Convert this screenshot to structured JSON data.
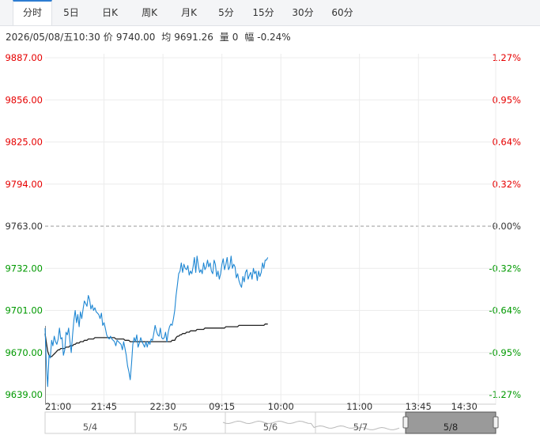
{
  "tabs": [
    "分时",
    "5日",
    "日K",
    "周K",
    "月K",
    "5分",
    "15分",
    "30分",
    "60分"
  ],
  "active_tab": 0,
  "info": {
    "datetime": "2026/05/08/五10:30",
    "price_label": "价",
    "price": "9740.00",
    "avg_label": "均",
    "avg": "9691.26",
    "vol_label": "量",
    "vol": "0",
    "chg_label": "幅",
    "chg": "-0.24%"
  },
  "colors": {
    "up": "#e60000",
    "down": "#009900",
    "flat": "#333333",
    "price_line": "#1f87d3",
    "avg_line": "#222222",
    "tab_accent": "#2d7dd2"
  },
  "chart_data": {
    "type": "line",
    "prev_close": 9763.0,
    "ylim": [
      9639.0,
      9887.0
    ],
    "y_ticks": [
      "9887.00",
      "9856.00",
      "9825.00",
      "9794.00",
      "9763.00",
      "9732.00",
      "9701.00",
      "9670.00",
      "9639.00"
    ],
    "pct_ticks": [
      "1.27%",
      "0.95%",
      "0.64%",
      "0.32%",
      "0.00%",
      "-0.32%",
      "-0.64%",
      "-0.95%",
      "-1.27%"
    ],
    "x_ticks": [
      "21:00",
      "21:45",
      "22:30",
      "09:15",
      "10:00",
      "11:00",
      "13:45",
      "14:30"
    ],
    "x_tick_index": [
      0,
      45,
      90,
      135,
      180,
      240,
      285,
      330
    ],
    "total_points": 345,
    "series": [
      {
        "values": [
          9688,
          9660,
          9645,
          9668,
          9666,
          9679,
          9675,
          9682,
          9678,
          9676,
          9680,
          9688,
          9680,
          9681,
          9668,
          9672,
          9685,
          9683,
          9688,
          9678,
          9670,
          9683,
          9694,
          9701,
          9692,
          9698,
          9689,
          9700,
          9695,
          9702,
          9708,
          9706,
          9704,
          9712,
          9709,
          9702,
          9705,
          9701,
          9703,
          9700,
          9699,
          9698,
          9695,
          9699,
          9690,
          9692,
          9688,
          9683,
          9681,
          9680,
          9682,
          9680,
          9679,
          9678,
          9675,
          9679,
          9678,
          9677,
          9676,
          9672,
          9678,
          9673,
          9668,
          9660,
          9656,
          9650,
          9662,
          9676,
          9681,
          9678,
          9683,
          9674,
          9677,
          9681,
          9678,
          9676,
          9674,
          9678,
          9674,
          9678,
          9676,
          9680,
          9679,
          9684,
          9690,
          9686,
          9683,
          9682,
          9688,
          9681,
          9680,
          9681,
          9685,
          9678,
          9685,
          9689,
          9691,
          9690,
          9695,
          9701,
          9712,
          9720,
          9728,
          9730,
          9736,
          9729,
          9735,
          9732,
          9731,
          9734,
          9727,
          9730,
          9728,
          9733,
          9740,
          9729,
          9741,
          9734,
          9729,
          9731,
          9728,
          9736,
          9731,
          9733,
          9738,
          9733,
          9736,
          9730,
          9728,
          9738,
          9735,
          9726,
          9730,
          9724,
          9728,
          9735,
          9739,
          9731,
          9735,
          9740,
          9731,
          9733,
          9741,
          9732,
          9735,
          9733,
          9725,
          9728,
          9723,
          9720,
          9718,
          9726,
          9722,
          9729,
          9731,
          9724,
          9727,
          9729,
          9724,
          9732,
          9728,
          9730,
          9723,
          9730,
          9726,
          9729,
          9736,
          9732,
          9738,
          9738,
          9740
        ],
        "color": "#1f87d3"
      },
      {
        "values": [
          9684,
          9677,
          9671,
          9668,
          9667,
          9667,
          9668,
          9669,
          9670,
          9671,
          9672,
          9672,
          9673,
          9673,
          9673,
          9673,
          9674,
          9674,
          9674,
          9675,
          9675,
          9675,
          9676,
          9676,
          9677,
          9677,
          9677,
          9678,
          9678,
          9678,
          9679,
          9679,
          9679,
          9680,
          9680,
          9680,
          9680,
          9680,
          9681,
          9681,
          9681,
          9681,
          9681,
          9681,
          9681,
          9681,
          9681,
          9681,
          9681,
          9681,
          9681,
          9681,
          9681,
          9681,
          9680,
          9680,
          9680,
          9680,
          9680,
          9680,
          9680,
          9679,
          9679,
          9679,
          9679,
          9678,
          9678,
          9678,
          9678,
          9678,
          9678,
          9678,
          9678,
          9678,
          9678,
          9678,
          9678,
          9678,
          9678,
          9678,
          9678,
          9678,
          9678,
          9678,
          9678,
          9678,
          9678,
          9678,
          9678,
          9678,
          9678,
          9678,
          9678,
          9678,
          9678,
          9678,
          9678,
          9679,
          9679,
          9679,
          9681,
          9682,
          9682,
          9683,
          9683,
          9684,
          9684,
          9684,
          9685,
          9685,
          9685,
          9686,
          9686,
          9686,
          9686,
          9686,
          9687,
          9687,
          9687,
          9687,
          9687,
          9687,
          9688,
          9688,
          9688,
          9688,
          9688,
          9688,
          9688,
          9688,
          9688,
          9688,
          9688,
          9688,
          9688,
          9688,
          9688,
          9688,
          9689,
          9689,
          9689,
          9689,
          9689,
          9689,
          9689,
          9689,
          9689,
          9689,
          9690,
          9690,
          9690,
          9690,
          9690,
          9690,
          9690,
          9690,
          9690,
          9690,
          9690,
          9690,
          9690,
          9690,
          9690,
          9690,
          9690,
          9690,
          9690,
          9690,
          9691,
          9691,
          9691
        ],
        "color": "#222222"
      }
    ],
    "navigator": {
      "labels": [
        "5/4",
        "5/5",
        "5/6",
        "5/7",
        "5/8"
      ],
      "selected_label": "5/8"
    }
  }
}
